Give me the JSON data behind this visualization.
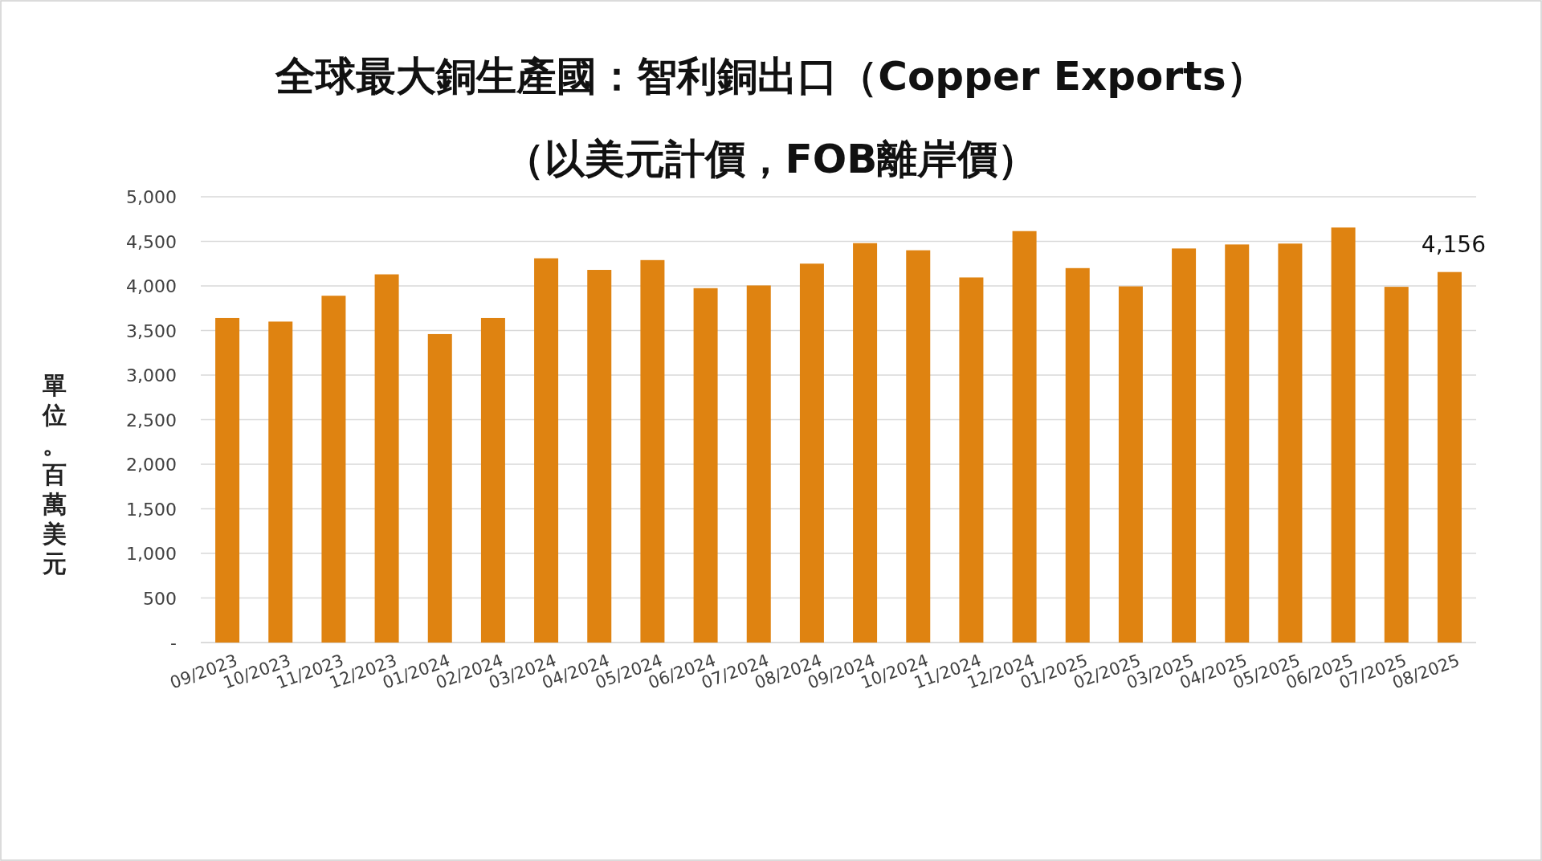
{
  "chart_data": {
    "type": "bar",
    "title": "全球最大銅生產國：智利銅出口（Copper Exports）",
    "subtitle": "（以美元計價，FOB離岸價）",
    "ylabel": "單位。百萬美元",
    "categories": [
      "09/2023",
      "10/2023",
      "11/2023",
      "12/2023",
      "01/2024",
      "02/2024",
      "03/2024",
      "04/2024",
      "05/2024",
      "06/2024",
      "07/2024",
      "08/2024",
      "09/2024",
      "10/2024",
      "11/2024",
      "12/2024",
      "01/2025",
      "02/2025",
      "03/2025",
      "04/2025",
      "05/2025",
      "06/2025",
      "07/2025",
      "08/2025"
    ],
    "values": [
      3640,
      3600,
      3890,
      4130,
      3460,
      3640,
      4310,
      4180,
      4290,
      3975,
      4005,
      4250,
      4480,
      4400,
      4095,
      4615,
      4200,
      3995,
      4420,
      4465,
      4475,
      4655,
      3990,
      4156
    ],
    "value_labels": [
      null,
      null,
      null,
      null,
      null,
      null,
      null,
      null,
      null,
      null,
      null,
      null,
      null,
      null,
      null,
      null,
      null,
      null,
      null,
      null,
      null,
      null,
      null,
      "4,156"
    ],
    "color": "#df8311",
    "ylim": [
      0,
      5000
    ],
    "yticks": [
      {
        "value": 0,
        "label": "-"
      },
      {
        "value": 500,
        "label": "500"
      },
      {
        "value": 1000,
        "label": "1,000"
      },
      {
        "value": 1500,
        "label": "1,500"
      },
      {
        "value": 2000,
        "label": "2,000"
      },
      {
        "value": 2500,
        "label": "2,500"
      },
      {
        "value": 3000,
        "label": "3,000"
      },
      {
        "value": 3500,
        "label": "3,500"
      },
      {
        "value": 4000,
        "label": "4,000"
      },
      {
        "value": 4500,
        "label": "4,500"
      },
      {
        "value": 5000,
        "label": "5,000"
      }
    ],
    "grid": "y"
  }
}
